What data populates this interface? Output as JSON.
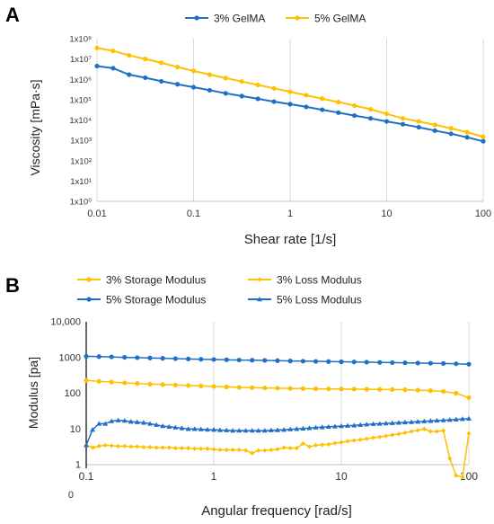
{
  "chart_data": [
    {
      "panel_label": "A",
      "type": "line",
      "xlabel": "Shear rate [1/s]",
      "ylabel": "Viscosity [mPa·s]",
      "x_scale": "log",
      "y_scale": "log",
      "xlim": [
        0.01,
        100
      ],
      "ylim": [
        1,
        100000000
      ],
      "x_ticks": [
        0.01,
        0.1,
        1,
        10,
        100
      ],
      "x_tick_labels": [
        "0.01",
        "0.1",
        "1",
        "10",
        "100"
      ],
      "y_ticks": [
        1,
        10,
        100,
        1000,
        10000,
        100000,
        1000000,
        10000000,
        100000000
      ],
      "y_tick_labels": [
        "1x10⁰",
        "1x10¹",
        "1x10²",
        "1x10³",
        "1x10⁴",
        "1x10⁵",
        "1x10⁶",
        "1x10⁷",
        "1x10⁸"
      ],
      "grid": "vertical",
      "legend_position": "top",
      "x": [
        0.01,
        0.0147,
        0.0215,
        0.0316,
        0.0464,
        0.0681,
        0.1,
        0.147,
        0.215,
        0.316,
        0.464,
        0.681,
        1,
        1.47,
        2.15,
        3.16,
        4.64,
        6.81,
        10,
        14.7,
        21.5,
        31.6,
        46.4,
        68.1,
        100
      ],
      "series": [
        {
          "name": "3% GelMA",
          "color": "#1f6fc6",
          "marker": "circle",
          "values": [
            4500000,
            3500000,
            1700000,
            1200000,
            800000,
            570000,
            410000,
            290000,
            205000,
            150000,
            110000,
            80000,
            60000,
            44000,
            32000,
            23000,
            16500,
            12000,
            8500,
            6200,
            4400,
            3000,
            2100,
            1400,
            900
          ]
        },
        {
          "name": "5% GelMA",
          "color": "#ffc000",
          "marker": "circle",
          "values": [
            35000000,
            25000000,
            15000000,
            10000000,
            6500000,
            4000000,
            2600000,
            1700000,
            1150000,
            780000,
            530000,
            360000,
            245000,
            165000,
            112000,
            76000,
            51000,
            34000,
            20000,
            12000,
            8500,
            5800,
            3900,
            2500,
            1500
          ]
        }
      ]
    },
    {
      "panel_label": "B",
      "type": "line",
      "xlabel": "Angular frequency [rad/s]",
      "ylabel": "Modulus [pa]",
      "x_scale": "log",
      "y_scale": "log",
      "xlim": [
        0.1,
        100
      ],
      "ylim": [
        1,
        10000
      ],
      "x_ticks": [
        0.1,
        1,
        10,
        100
      ],
      "x_tick_labels": [
        "0.1",
        "1",
        "10",
        "100"
      ],
      "y_ticks": [
        1,
        10,
        100,
        1000,
        10000
      ],
      "y_tick_labels": [
        "1",
        "10",
        "100",
        "1000",
        "10,000"
      ],
      "y_zero_label": "0",
      "grid": "vertical",
      "legend_position": "top",
      "series": [
        {
          "name": "3% Storage Modulus",
          "color": "#ffc000",
          "marker": "circle",
          "x": [
            0.1,
            0.126,
            0.158,
            0.2,
            0.251,
            0.316,
            0.398,
            0.501,
            0.631,
            0.794,
            1,
            1.26,
            1.58,
            2,
            2.51,
            3.16,
            3.98,
            5.01,
            6.31,
            7.94,
            10,
            12.6,
            15.8,
            20,
            25.1,
            31.6,
            39.8,
            50.1,
            63.1,
            79.4,
            100
          ],
          "values": [
            230,
            215,
            205,
            195,
            188,
            180,
            175,
            170,
            165,
            160,
            155,
            150,
            146,
            143,
            140,
            138,
            136,
            135,
            133,
            132,
            131,
            130,
            129,
            128,
            127,
            125,
            122,
            118,
            112,
            100,
            75
          ]
        },
        {
          "name": "3% Loss Modulus",
          "color": "#ffc000",
          "marker": "diamond",
          "x": [
            0.1,
            0.113,
            0.126,
            0.141,
            0.158,
            0.178,
            0.2,
            0.224,
            0.251,
            0.282,
            0.316,
            0.355,
            0.398,
            0.447,
            0.501,
            0.562,
            0.631,
            0.708,
            0.794,
            0.891,
            1,
            1.12,
            1.26,
            1.41,
            1.58,
            1.78,
            2,
            2.24,
            2.51,
            2.82,
            3.16,
            3.55,
            3.98,
            4.47,
            5.01,
            5.62,
            6.31,
            7.08,
            7.94,
            8.91,
            10,
            11.2,
            12.6,
            14.1,
            15.8,
            17.8,
            20,
            22.4,
            25.1,
            28.2,
            31.6,
            35.5,
            39.8,
            44.7,
            50.1,
            56.2,
            63.1,
            70.8,
            79.4,
            89.1,
            100
          ],
          "values": [
            3.5,
            3.0,
            3.3,
            3.5,
            3.4,
            3.3,
            3.3,
            3.2,
            3.2,
            3.1,
            3.1,
            3.0,
            3.0,
            3.0,
            2.9,
            2.9,
            2.9,
            2.8,
            2.8,
            2.8,
            2.7,
            2.6,
            2.6,
            2.6,
            2.6,
            2.5,
            2.1,
            2.5,
            2.5,
            2.6,
            2.7,
            3.0,
            2.9,
            2.9,
            3.9,
            3.2,
            3.5,
            3.6,
            3.7,
            4.0,
            4.2,
            4.5,
            4.8,
            5.0,
            5.3,
            5.7,
            6.0,
            6.4,
            6.8,
            7.2,
            7.8,
            8.5,
            9.2,
            10,
            8.5,
            8.5,
            9.0,
            1.5,
            0.5,
            0.45,
            7.5
          ]
        },
        {
          "name": "5% Storage Modulus",
          "color": "#1f6fc6",
          "marker": "circle",
          "x": [
            0.1,
            0.126,
            0.158,
            0.2,
            0.251,
            0.316,
            0.398,
            0.501,
            0.631,
            0.794,
            1,
            1.26,
            1.58,
            2,
            2.51,
            3.16,
            3.98,
            5.01,
            6.31,
            7.94,
            10,
            12.6,
            15.8,
            20,
            25.1,
            31.6,
            39.8,
            50.1,
            63.1,
            79.4,
            100
          ],
          "values": [
            1080,
            1060,
            1040,
            1010,
            990,
            970,
            950,
            930,
            910,
            895,
            880,
            865,
            850,
            840,
            830,
            815,
            800,
            790,
            780,
            770,
            760,
            750,
            740,
            730,
            720,
            710,
            700,
            690,
            680,
            670,
            650
          ]
        },
        {
          "name": "5% Loss Modulus",
          "color": "#1f6fc6",
          "marker": "triangle",
          "x": [
            0.1,
            0.112,
            0.126,
            0.141,
            0.158,
            0.178,
            0.2,
            0.224,
            0.251,
            0.282,
            0.316,
            0.355,
            0.398,
            0.447,
            0.501,
            0.562,
            0.631,
            0.708,
            0.794,
            0.891,
            1,
            1.12,
            1.26,
            1.41,
            1.58,
            1.78,
            2,
            2.24,
            2.51,
            2.82,
            3.16,
            3.55,
            3.98,
            4.47,
            5.01,
            5.62,
            6.31,
            7.08,
            7.94,
            8.91,
            10,
            11.2,
            12.6,
            14.1,
            15.8,
            17.8,
            20,
            22.4,
            25.1,
            28.2,
            31.6,
            35.5,
            39.8,
            44.7,
            50.1,
            56.2,
            63.1,
            70.8,
            79.4,
            89.1,
            100
          ],
          "values": [
            3.5,
            9.5,
            14,
            14,
            16.5,
            17.5,
            17,
            16,
            15.5,
            15,
            14,
            13,
            12,
            11.5,
            11,
            10.5,
            10,
            10,
            9.8,
            9.6,
            9.5,
            9.3,
            9.2,
            9.0,
            9.0,
            9.0,
            9.0,
            9.0,
            9.0,
            9.2,
            9.3,
            9.5,
            9.8,
            10,
            10.3,
            10.6,
            11,
            11.2,
            11.5,
            11.8,
            12,
            12.3,
            12.6,
            13,
            13.4,
            13.8,
            14,
            14.3,
            14.6,
            15,
            15.3,
            15.6,
            16,
            16.4,
            16.8,
            17.2,
            17.6,
            18,
            18.5,
            19,
            19.5
          ]
        }
      ]
    }
  ]
}
